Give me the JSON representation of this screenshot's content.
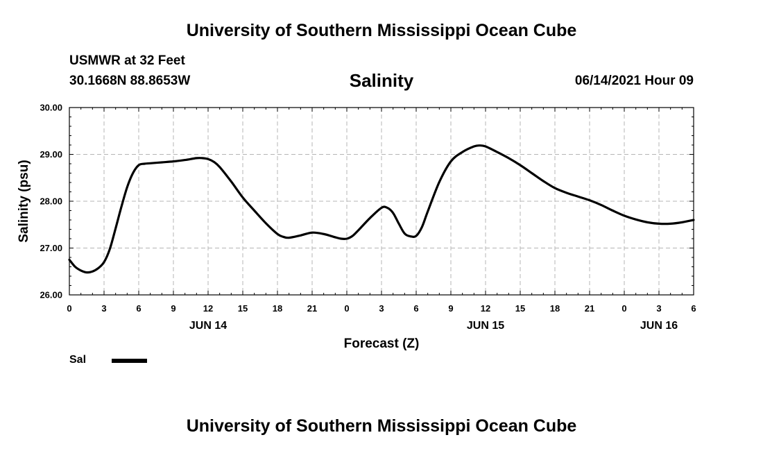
{
  "header": {
    "title": "University of Southern Mississippi Ocean Cube",
    "station": "USMWR at 32 Feet",
    "coords": "30.1668N  88.8653W",
    "parameter": "Salinity",
    "datetime": "06/14/2021 Hour 09"
  },
  "footer": {
    "title": "University of Southern Mississippi Ocean Cube"
  },
  "legend": {
    "label": "Sal",
    "color": "#000000"
  },
  "chart_data": {
    "type": "line",
    "xlabel": "Forecast (Z)",
    "ylabel": "Salinity (psu)",
    "xlim": [
      0,
      54
    ],
    "ylim": [
      26.0,
      30.0
    ],
    "grid": true,
    "legend_position": "bottom-left",
    "x_ticks": [
      0,
      3,
      6,
      9,
      12,
      15,
      18,
      21,
      24,
      27,
      30,
      33,
      36,
      39,
      42,
      45,
      48,
      51,
      54
    ],
    "x_tick_labels": [
      "0",
      "3",
      "6",
      "9",
      "12",
      "15",
      "18",
      "21",
      "0",
      "3",
      "6",
      "9",
      "12",
      "15",
      "18",
      "21",
      "0",
      "3",
      "6"
    ],
    "date_labels": [
      {
        "x": 12,
        "label": "JUN 14"
      },
      {
        "x": 36,
        "label": "JUN 15"
      },
      {
        "x": 51,
        "label": "JUN 16"
      }
    ],
    "y_ticks": [
      26.0,
      27.0,
      28.0,
      29.0,
      30.0
    ],
    "y_tick_labels": [
      "26.00",
      "27.00",
      "28.00",
      "29.00",
      "30.00"
    ],
    "series": [
      {
        "name": "Sal",
        "color": "#000000",
        "x": [
          0,
          0.5,
          1,
          1.5,
          2,
          2.5,
          3,
          3.5,
          4,
          4.5,
          5,
          5.5,
          6,
          6.5,
          7,
          8,
          9,
          10,
          11,
          11.5,
          12,
          12.5,
          13,
          14,
          15,
          16,
          17,
          18,
          18.5,
          19,
          20,
          21,
          22,
          23,
          23.5,
          24,
          24.5,
          25,
          26,
          27,
          27.5,
          28,
          28.5,
          29,
          29.5,
          30,
          30.5,
          31,
          32,
          33,
          34,
          35,
          35.5,
          36,
          37,
          38,
          39,
          40,
          41,
          42,
          43,
          44,
          45,
          46,
          47,
          48,
          49,
          50,
          51,
          52,
          53,
          54
        ],
        "y": [
          26.75,
          26.6,
          26.52,
          26.48,
          26.5,
          26.57,
          26.7,
          26.98,
          27.42,
          27.88,
          28.3,
          28.6,
          28.77,
          28.8,
          28.81,
          28.83,
          28.85,
          28.88,
          28.92,
          28.92,
          28.9,
          28.84,
          28.73,
          28.42,
          28.08,
          27.8,
          27.53,
          27.3,
          27.24,
          27.22,
          27.27,
          27.33,
          27.3,
          27.23,
          27.2,
          27.2,
          27.26,
          27.38,
          27.64,
          27.86,
          27.86,
          27.75,
          27.52,
          27.31,
          27.25,
          27.26,
          27.45,
          27.78,
          28.41,
          28.85,
          29.05,
          29.17,
          29.19,
          29.17,
          29.05,
          28.92,
          28.77,
          28.6,
          28.43,
          28.28,
          28.18,
          28.1,
          28.02,
          27.92,
          27.8,
          27.69,
          27.61,
          27.55,
          27.52,
          27.52,
          27.55,
          27.6
        ]
      }
    ]
  }
}
